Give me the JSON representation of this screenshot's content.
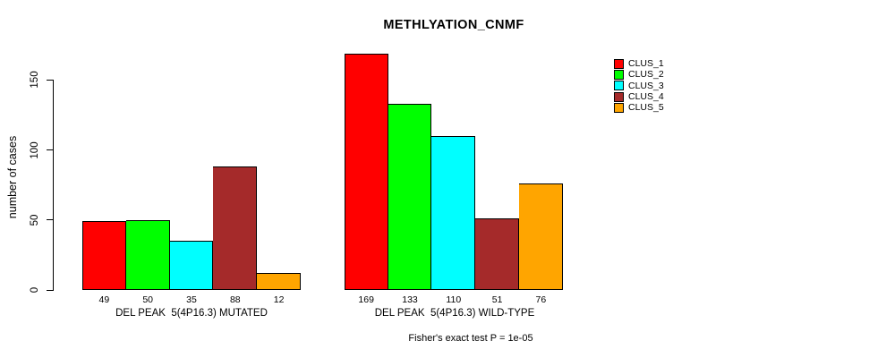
{
  "chart_data": {
    "type": "bar",
    "title": "METHLYATION_CNMF",
    "ylabel": "number of cases",
    "ylim": [
      0,
      170
    ],
    "y_ticks": [
      0,
      50,
      100,
      150
    ],
    "grid": false,
    "legend_position": "right",
    "bar_value_labels_shown": true,
    "categories": [
      "DEL PEAK  5(4P16.3) MUTATED",
      "DEL PEAK  5(4P16.3) WILD-TYPE"
    ],
    "series": [
      {
        "name": "CLUS_1",
        "color": "#FF0000",
        "values": [
          49,
          169
        ]
      },
      {
        "name": "CLUS_2",
        "color": "#00FF00",
        "values": [
          50,
          133
        ]
      },
      {
        "name": "CLUS_3",
        "color": "#00FFFF",
        "values": [
          35,
          110
        ]
      },
      {
        "name": "CLUS_4",
        "color": "#A52A2A",
        "values": [
          88,
          51
        ]
      },
      {
        "name": "CLUS_5",
        "color": "#FFA500",
        "values": [
          12,
          76
        ]
      }
    ],
    "annotation": "Fisher's exact test P = 1e-05"
  }
}
